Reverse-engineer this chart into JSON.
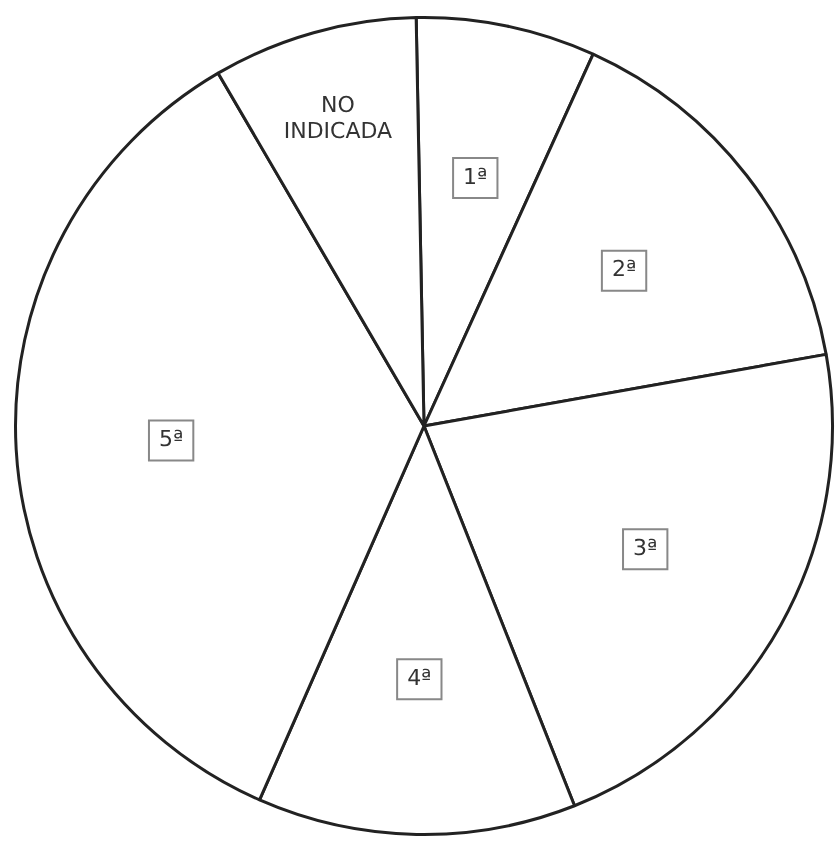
{
  "chart_data": {
    "type": "pie",
    "categories": [
      "1ª",
      "2ª",
      "3ª",
      "4ª",
      "5ª",
      "NO INDICADA"
    ],
    "values": [
      7.1,
      15.4,
      21.8,
      12.6,
      35.0,
      8.1
    ],
    "colors": [
      "#ffffff",
      "#ffffff",
      "#ffffff",
      "#ffffff",
      "#ffffff",
      "#ffffff"
    ],
    "legend": false
  }
}
